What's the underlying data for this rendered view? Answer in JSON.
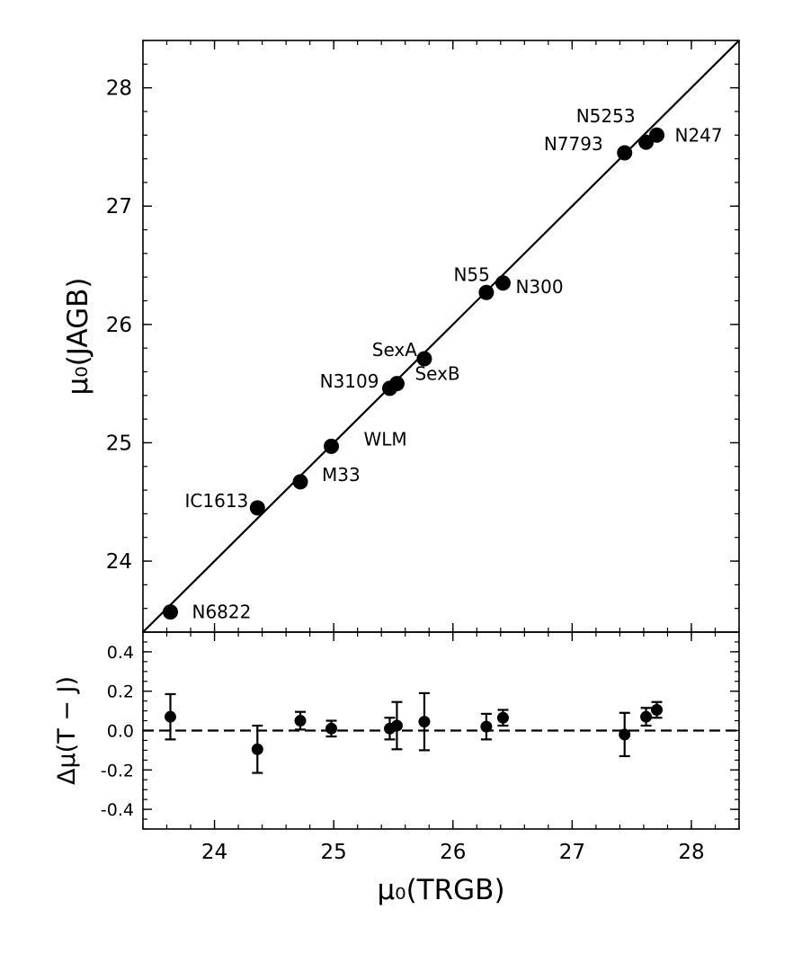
{
  "chart_data": [
    {
      "type": "scatter",
      "panel": "top",
      "title": "",
      "xlabel": "μ₀(TRGB)",
      "ylabel": "μ₀(JAGB)",
      "xlim": [
        23.4,
        28.4
      ],
      "ylim": [
        23.4,
        28.4
      ],
      "xticks": [
        24,
        25,
        26,
        27,
        28
      ],
      "yticks": [
        24,
        25,
        26,
        27,
        28
      ],
      "grid": false,
      "reference_line": "y = x",
      "points": [
        {
          "name": "N6822",
          "x": 23.63,
          "y": 23.57
        },
        {
          "name": "IC1613",
          "x": 24.36,
          "y": 24.45
        },
        {
          "name": "M33",
          "x": 24.72,
          "y": 24.67
        },
        {
          "name": "WLM",
          "x": 24.98,
          "y": 24.97
        },
        {
          "name": "N3109",
          "x": 25.47,
          "y": 25.46
        },
        {
          "name": "SexB",
          "x": 25.53,
          "y": 25.5
        },
        {
          "name": "SexA",
          "x": 25.76,
          "y": 25.71
        },
        {
          "name": "N55",
          "x": 26.28,
          "y": 26.27
        },
        {
          "name": "N300",
          "x": 26.42,
          "y": 26.35
        },
        {
          "name": "N7793",
          "x": 27.44,
          "y": 27.45
        },
        {
          "name": "N5253",
          "x": 27.62,
          "y": 27.54
        },
        {
          "name": "N247",
          "x": 27.71,
          "y": 27.6
        }
      ]
    },
    {
      "type": "scatter",
      "panel": "bottom",
      "title": "",
      "xlabel": "μ₀(TRGB)",
      "ylabel": "Δμ(T − J)",
      "xlim": [
        23.4,
        28.4
      ],
      "ylim": [
        -0.5,
        0.5
      ],
      "xticks": [
        24,
        25,
        26,
        27,
        28
      ],
      "yticks": [
        -0.4,
        -0.2,
        0.0,
        0.2,
        0.4
      ],
      "ytick_labels": [
        "-0.4",
        "-0.2",
        "0.0",
        "0.2",
        "0.4"
      ],
      "grid": false,
      "reference_line": "y = 0 (dashed)",
      "points": [
        {
          "x": 23.63,
          "y": 0.07,
          "err": 0.115
        },
        {
          "x": 24.36,
          "y": -0.095,
          "err": 0.12
        },
        {
          "x": 24.72,
          "y": 0.05,
          "err": 0.045
        },
        {
          "x": 24.98,
          "y": 0.01,
          "err": 0.04
        },
        {
          "x": 25.47,
          "y": 0.01,
          "err": 0.055
        },
        {
          "x": 25.53,
          "y": 0.025,
          "err": 0.12
        },
        {
          "x": 25.76,
          "y": 0.045,
          "err": 0.145
        },
        {
          "x": 26.28,
          "y": 0.02,
          "err": 0.065
        },
        {
          "x": 26.42,
          "y": 0.065,
          "err": 0.04
        },
        {
          "x": 27.44,
          "y": -0.02,
          "err": 0.11
        },
        {
          "x": 27.62,
          "y": 0.07,
          "err": 0.045
        },
        {
          "x": 27.71,
          "y": 0.105,
          "err": 0.04
        }
      ]
    }
  ]
}
